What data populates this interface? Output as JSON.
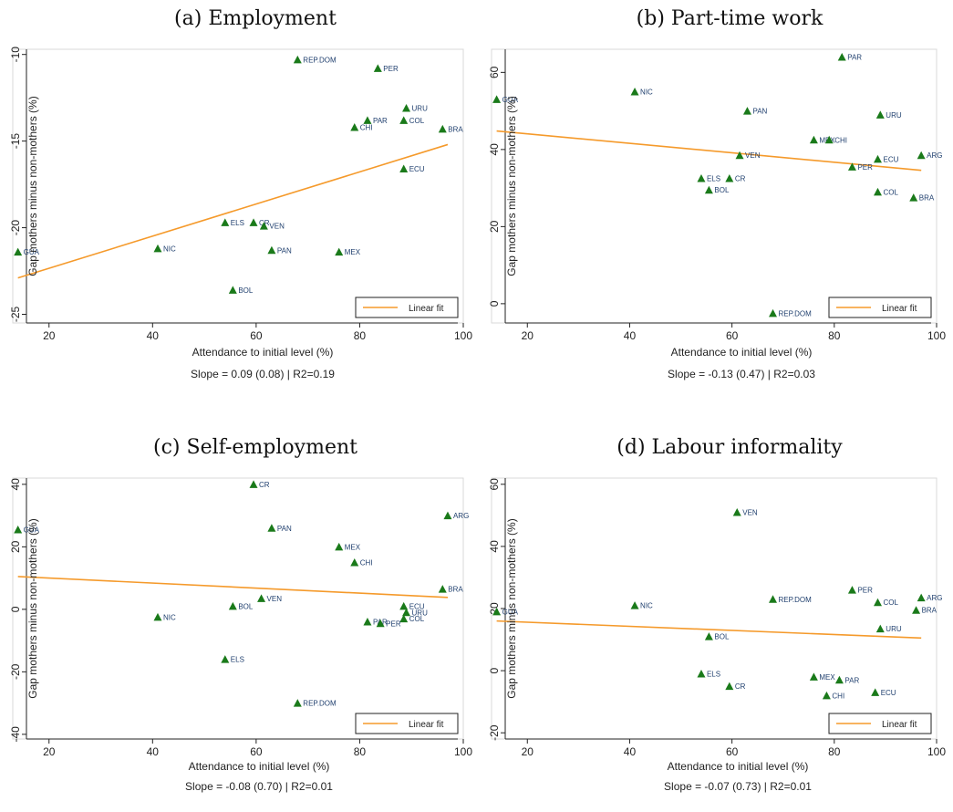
{
  "chart_data": [
    {
      "id": "employment",
      "type": "scatter",
      "title": "(a) Employment",
      "xlabel": "Attendance to initial level (%)",
      "ylabel": "Gap mothers minus non-mothers (%)",
      "caption": "Slope = 0.09 (0.08) | R2=0.19",
      "legend": "Linear fit",
      "legend_position": "bottom-right",
      "xlim": [
        13,
        100
      ],
      "ylim": [
        -25.5,
        -9.7
      ],
      "xticks": [
        20,
        40,
        60,
        80,
        100
      ],
      "yticks": [
        -10,
        -15,
        -20,
        -25
      ],
      "fit": [
        [
          14,
          -22.9
        ],
        [
          97,
          -15.2
        ]
      ],
      "points": [
        {
          "label": "REP.DOM",
          "x": 68,
          "y": -10.3
        },
        {
          "label": "PER",
          "x": 83.5,
          "y": -10.8
        },
        {
          "label": "URU",
          "x": 89,
          "y": -13.1
        },
        {
          "label": "PAR",
          "x": 81.5,
          "y": -13.8
        },
        {
          "label": "COL",
          "x": 88.5,
          "y": -13.8
        },
        {
          "label": "CHI",
          "x": 79,
          "y": -14.2
        },
        {
          "label": "BRA",
          "x": 96,
          "y": -14.3
        },
        {
          "label": "ECU",
          "x": 88.5,
          "y": -16.6
        },
        {
          "label": "ELS",
          "x": 54,
          "y": -19.7
        },
        {
          "label": "CR",
          "x": 59.5,
          "y": -19.7
        },
        {
          "label": "VEN",
          "x": 61.5,
          "y": -19.9
        },
        {
          "label": "GUA",
          "x": 14,
          "y": -21.4
        },
        {
          "label": "NIC",
          "x": 41,
          "y": -21.2
        },
        {
          "label": "PAN",
          "x": 63,
          "y": -21.3
        },
        {
          "label": "MEX",
          "x": 76,
          "y": -21.4
        },
        {
          "label": "BOL",
          "x": 55.5,
          "y": -23.6
        }
      ]
    },
    {
      "id": "parttime",
      "type": "scatter",
      "title": "(b) Part-time work",
      "xlabel": "Attendance to initial level (%)",
      "ylabel": "Gap mothers minus non-mothers (%)",
      "caption": "Slope = -0.13 (0.47) | R2=0.03",
      "legend": "Linear fit",
      "legend_position": "bottom-right",
      "xlim": [
        13,
        100
      ],
      "ylim": [
        -5,
        66
      ],
      "xticks": [
        20,
        40,
        60,
        80,
        100
      ],
      "yticks": [
        0,
        20,
        40,
        60
      ],
      "fit": [
        [
          14,
          44.8
        ],
        [
          97,
          34.6
        ]
      ],
      "points": [
        {
          "label": "PAR",
          "x": 81.5,
          "y": 64
        },
        {
          "label": "NIC",
          "x": 41,
          "y": 55
        },
        {
          "label": "GUA",
          "x": 14,
          "y": 53
        },
        {
          "label": "PAN",
          "x": 63,
          "y": 50
        },
        {
          "label": "URU",
          "x": 89,
          "y": 49
        },
        {
          "label": "MEX",
          "x": 76,
          "y": 42.5
        },
        {
          "label": "CHI",
          "x": 79,
          "y": 42.5
        },
        {
          "label": "VEN",
          "x": 61.5,
          "y": 38.5
        },
        {
          "label": "ARG",
          "x": 97,
          "y": 38.5
        },
        {
          "label": "ECU",
          "x": 88.5,
          "y": 37.5
        },
        {
          "label": "PER",
          "x": 83.5,
          "y": 35.5
        },
        {
          "label": "ELS",
          "x": 54,
          "y": 32.5
        },
        {
          "label": "CR",
          "x": 59.5,
          "y": 32.5
        },
        {
          "label": "BOL",
          "x": 55.5,
          "y": 29.5
        },
        {
          "label": "COL",
          "x": 88.5,
          "y": 29
        },
        {
          "label": "BRA",
          "x": 95.5,
          "y": 27.5
        },
        {
          "label": "REP.DOM",
          "x": 68,
          "y": -2.5
        }
      ]
    },
    {
      "id": "selfemployment",
      "type": "scatter",
      "title": "(c) Self-employment",
      "xlabel": "Attendance to initial level (%)",
      "ylabel": "Gap mothers minus non-mothers (%)",
      "caption": "Slope = -0.08 (0.70) | R2=0.01",
      "legend": "Linear fit",
      "legend_position": "bottom-right",
      "xlim": [
        13,
        100
      ],
      "ylim": [
        -41.5,
        42
      ],
      "xticks": [
        20,
        40,
        60,
        80,
        100
      ],
      "yticks": [
        40,
        20,
        0,
        -20,
        -40
      ],
      "fit": [
        [
          14,
          10.5
        ],
        [
          97,
          3.8
        ]
      ],
      "points": [
        {
          "label": "CR",
          "x": 59.5,
          "y": 40
        },
        {
          "label": "ARG",
          "x": 97,
          "y": 30
        },
        {
          "label": "GUA",
          "x": 14,
          "y": 25.5
        },
        {
          "label": "PAN",
          "x": 63,
          "y": 26
        },
        {
          "label": "MEX",
          "x": 76,
          "y": 20
        },
        {
          "label": "CHI",
          "x": 79,
          "y": 15
        },
        {
          "label": "BRA",
          "x": 96,
          "y": 6.5
        },
        {
          "label": "VEN",
          "x": 61,
          "y": 3.5
        },
        {
          "label": "BOL",
          "x": 55.5,
          "y": 1
        },
        {
          "label": "ECU",
          "x": 88.5,
          "y": 1
        },
        {
          "label": "URU",
          "x": 89,
          "y": -1
        },
        {
          "label": "COL",
          "x": 88.5,
          "y": -3
        },
        {
          "label": "NIC",
          "x": 41,
          "y": -2.5
        },
        {
          "label": "PAR",
          "x": 81.5,
          "y": -4
        },
        {
          "label": "PER",
          "x": 84,
          "y": -4.5
        },
        {
          "label": "ELS",
          "x": 54,
          "y": -16
        },
        {
          "label": "REP.DOM",
          "x": 68,
          "y": -30
        }
      ]
    },
    {
      "id": "informality",
      "type": "scatter",
      "title": "(d) Labour informality",
      "xlabel": "Attendance to initial level (%)",
      "ylabel": "Gap mothers minus non-mothers (%)",
      "caption": "Slope = -0.07 (0.73) | R2=0.01",
      "legend": "Linear fit",
      "legend_position": "bottom-right",
      "xlim": [
        13,
        100
      ],
      "ylim": [
        -22,
        62
      ],
      "xticks": [
        20,
        40,
        60,
        80,
        100
      ],
      "yticks": [
        60,
        40,
        20,
        0,
        -20
      ],
      "fit": [
        [
          14,
          16
        ],
        [
          97,
          10.5
        ]
      ],
      "points": [
        {
          "label": "VEN",
          "x": 61,
          "y": 51
        },
        {
          "label": "PER",
          "x": 83.5,
          "y": 26
        },
        {
          "label": "ARG",
          "x": 97,
          "y": 23.5
        },
        {
          "label": "REP.DOM",
          "x": 68,
          "y": 23
        },
        {
          "label": "COL",
          "x": 88.5,
          "y": 22
        },
        {
          "label": "NIC",
          "x": 41,
          "y": 21
        },
        {
          "label": "BRA",
          "x": 96,
          "y": 19.5
        },
        {
          "label": "GUA",
          "x": 14,
          "y": 19
        },
        {
          "label": "URU",
          "x": 89,
          "y": 13.5
        },
        {
          "label": "BOL",
          "x": 55.5,
          "y": 11
        },
        {
          "label": "ELS",
          "x": 54,
          "y": -1
        },
        {
          "label": "MEX",
          "x": 76,
          "y": -2
        },
        {
          "label": "PAR",
          "x": 81,
          "y": -3
        },
        {
          "label": "CR",
          "x": 59.5,
          "y": -5
        },
        {
          "label": "ECU",
          "x": 88,
          "y": -7
        },
        {
          "label": "CHI",
          "x": 78.5,
          "y": -8
        }
      ]
    }
  ],
  "colors": {
    "marker": "#1a7a1a",
    "point_label": "#1f3f6e",
    "fit_line": "#f59a2b"
  }
}
